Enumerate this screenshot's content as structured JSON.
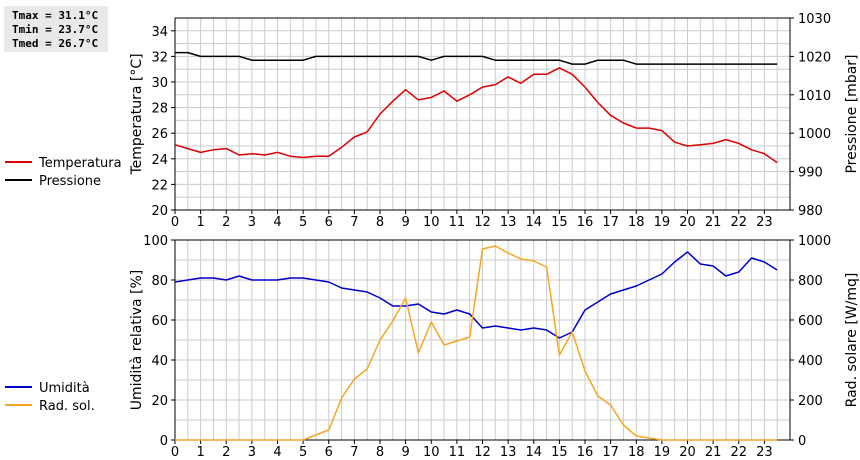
{
  "stats": {
    "tmax": "Tmax = 31.1°C",
    "tmin": "Tmin = 23.7°C",
    "tmed": "Tmed = 26.7°C"
  },
  "colors": {
    "temperature": "#dd0000",
    "pressure": "#000000",
    "humidity": "#0000cc",
    "solar": "#f5a623",
    "grid": "#cccccc",
    "frame": "#000000"
  },
  "chart_data": [
    {
      "type": "line",
      "xlim": [
        0,
        24
      ],
      "x_ticks": [
        0,
        1,
        2,
        3,
        4,
        5,
        6,
        7,
        8,
        9,
        10,
        11,
        12,
        13,
        14,
        15,
        16,
        17,
        18,
        19,
        20,
        21,
        22,
        23
      ],
      "left_axis": {
        "label": "Temperatura [°C]",
        "ylim": [
          20,
          35
        ],
        "ticks": [
          20,
          22,
          24,
          26,
          28,
          30,
          32,
          34
        ]
      },
      "right_axis": {
        "label": "Pressione [mbar]",
        "ylim": [
          980,
          1030
        ],
        "ticks": [
          980,
          990,
          1000,
          1010,
          1020,
          1030
        ]
      },
      "grid": true,
      "series": [
        {
          "name": "Temperatura",
          "axis": "left",
          "color": "#dd0000",
          "x": [
            0,
            0.5,
            1,
            1.5,
            2,
            2.5,
            3,
            3.5,
            4,
            4.5,
            5,
            5.5,
            6,
            6.5,
            7,
            7.5,
            8,
            8.5,
            9,
            9.5,
            10,
            10.5,
            11,
            11.5,
            12,
            12.5,
            13,
            13.5,
            14,
            14.5,
            15,
            15.5,
            16,
            16.5,
            17,
            17.5,
            18,
            18.5,
            19,
            19.5,
            20,
            20.5,
            21,
            21.5,
            22,
            22.5,
            23,
            23.5
          ],
          "y": [
            25.1,
            24.8,
            24.5,
            24.7,
            24.8,
            24.3,
            24.4,
            24.3,
            24.5,
            24.2,
            24.1,
            24.2,
            24.2,
            24.9,
            25.7,
            26.1,
            27.5,
            28.5,
            29.4,
            28.6,
            28.8,
            29.3,
            28.5,
            29.0,
            29.6,
            29.8,
            30.4,
            29.9,
            30.6,
            30.6,
            31.1,
            30.6,
            29.6,
            28.4,
            27.4,
            26.8,
            26.4,
            26.4,
            26.2,
            25.3,
            25.0,
            25.1,
            25.2,
            25.5,
            25.2,
            24.7,
            24.4,
            23.7
          ]
        },
        {
          "name": "Pressione",
          "axis": "right",
          "color": "#000000",
          "x": [
            0,
            0.5,
            1,
            1.5,
            2,
            2.5,
            3,
            3.5,
            4,
            4.5,
            5,
            5.5,
            6,
            6.5,
            7,
            7.5,
            8,
            8.5,
            9,
            9.5,
            10,
            10.5,
            11,
            11.5,
            12,
            12.5,
            13,
            13.5,
            14,
            14.5,
            15,
            15.5,
            16,
            16.5,
            17,
            17.5,
            18,
            18.5,
            19,
            19.5,
            20,
            20.5,
            21,
            21.5,
            22,
            22.5,
            23,
            23.5
          ],
          "y": [
            1021,
            1021,
            1020,
            1020,
            1020,
            1020,
            1019,
            1019,
            1019,
            1019,
            1019,
            1020,
            1020,
            1020,
            1020,
            1020,
            1020,
            1020,
            1020,
            1020,
            1019,
            1020,
            1020,
            1020,
            1020,
            1019,
            1019,
            1019,
            1019,
            1019,
            1019,
            1018,
            1018,
            1019,
            1019,
            1019,
            1018,
            1018,
            1018,
            1018,
            1018,
            1018,
            1018,
            1018,
            1018,
            1018,
            1018,
            1018
          ]
        }
      ]
    },
    {
      "type": "line",
      "xlim": [
        0,
        24
      ],
      "x_ticks": [
        0,
        1,
        2,
        3,
        4,
        5,
        6,
        7,
        8,
        9,
        10,
        11,
        12,
        13,
        14,
        15,
        16,
        17,
        18,
        19,
        20,
        21,
        22,
        23
      ],
      "left_axis": {
        "label": "Umidità relativa [%]",
        "ylim": [
          0,
          100
        ],
        "ticks": [
          0,
          20,
          40,
          60,
          80,
          100
        ]
      },
      "right_axis": {
        "label": "Rad. solare [W/mq]",
        "ylim": [
          0,
          1000
        ],
        "ticks": [
          0,
          200,
          400,
          600,
          800,
          1000
        ]
      },
      "grid": true,
      "series": [
        {
          "name": "Umidità",
          "axis": "left",
          "color": "#0000cc",
          "x": [
            0,
            0.5,
            1,
            1.5,
            2,
            2.5,
            3,
            3.5,
            4,
            4.5,
            5,
            5.5,
            6,
            6.5,
            7,
            7.5,
            8,
            8.5,
            9,
            9.5,
            10,
            10.5,
            11,
            11.5,
            12,
            12.5,
            13,
            13.5,
            14,
            14.5,
            15,
            15.5,
            16,
            16.5,
            17,
            17.5,
            18,
            18.5,
            19,
            19.5,
            20,
            20.5,
            21,
            21.5,
            22,
            22.5,
            23,
            23.5
          ],
          "y": [
            79,
            80,
            81,
            81,
            80,
            82,
            80,
            80,
            80,
            81,
            81,
            80,
            79,
            76,
            75,
            74,
            71,
            67,
            67,
            68,
            64,
            63,
            65,
            63,
            56,
            57,
            56,
            55,
            56,
            55,
            51,
            54,
            65,
            69,
            73,
            75,
            77,
            80,
            83,
            89,
            94,
            88,
            87,
            82,
            84,
            91,
            89,
            85
          ]
        },
        {
          "name": "Rad. sol.",
          "axis": "right",
          "color": "#f5a623",
          "x": [
            0,
            0.5,
            1,
            1.5,
            2,
            2.5,
            3,
            3.5,
            4,
            4.5,
            5,
            5.5,
            6,
            6.5,
            7,
            7.5,
            8,
            8.5,
            9,
            9.5,
            10,
            10.5,
            11,
            11.5,
            12,
            12.5,
            13,
            13.5,
            14,
            14.5,
            15,
            15.5,
            16,
            16.5,
            17,
            17.5,
            18,
            18.5,
            19,
            19.5,
            20,
            20.5,
            21,
            21.5,
            22,
            22.5,
            23,
            23.5
          ],
          "y": [
            0,
            0,
            0,
            0,
            0,
            0,
            0,
            0,
            0,
            0,
            0,
            25,
            50,
            210,
            305,
            355,
            500,
            595,
            710,
            435,
            590,
            475,
            495,
            515,
            955,
            970,
            935,
            905,
            895,
            865,
            425,
            540,
            345,
            220,
            175,
            75,
            20,
            10,
            0,
            0,
            0,
            0,
            0,
            0,
            0,
            0,
            0,
            0
          ]
        }
      ]
    }
  ]
}
